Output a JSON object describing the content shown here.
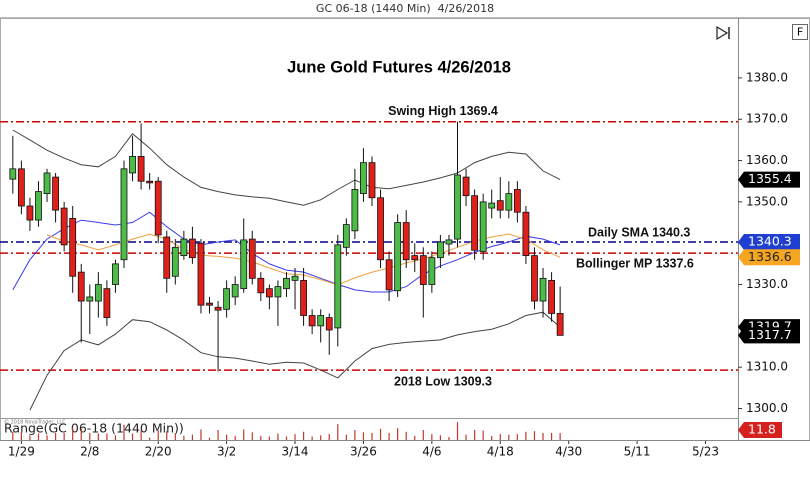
{
  "header": "GC 06-18 (1440 Min)  4/26/2018",
  "toolbar_button": "F",
  "watermark": "© 2018 NinjaTrader, LLC",
  "chart_data": [
    {
      "type": "candlestick",
      "title": "June Gold Futures 4/26/2018",
      "open": [
        1355.5,
        1358,
        1349,
        1345.6,
        1352,
        1356,
        1348.5,
        1346,
        1333,
        1326,
        1326,
        1329,
        1330,
        1336,
        1357,
        1361,
        1355,
        1355,
        1341.5,
        1332,
        1337,
        1341,
        1340,
        1325.5,
        1324.5,
        1324,
        1327,
        1329,
        1341,
        1331.5,
        1329,
        1327,
        1329,
        1331,
        1331,
        1322.5,
        1320,
        1322,
        1319.5,
        1339,
        1343,
        1352,
        1359.5,
        1351,
        1336,
        1328.5,
        1345,
        1337,
        1337,
        1330,
        1336.5,
        1339.8,
        1341,
        1356,
        1351.5,
        1338,
        1348.5,
        1350.3,
        1348,
        1353,
        1347.5,
        1337,
        1326,
        1331,
        1323
      ],
      "high": [
        1366,
        1360,
        1351,
        1355,
        1358,
        1357,
        1350,
        1349,
        1335,
        1330,
        1333,
        1331,
        1336,
        1360,
        1366,
        1369,
        1357,
        1356,
        1343,
        1341,
        1343,
        1344,
        1341,
        1327,
        1326,
        1331,
        1332,
        1346,
        1343,
        1333,
        1330,
        1331,
        1333,
        1334,
        1334,
        1324,
        1324,
        1323,
        1342,
        1346,
        1358,
        1363,
        1361,
        1353,
        1338,
        1347,
        1348,
        1340,
        1339,
        1338,
        1342,
        1342,
        1369.4,
        1358,
        1353,
        1352,
        1353,
        1356,
        1355,
        1355,
        1349,
        1339,
        1334,
        1333,
        1329.5
      ],
      "low": [
        1352,
        1347,
        1343,
        1344,
        1350,
        1345,
        1338,
        1328,
        1316,
        1318,
        1322,
        1320,
        1328,
        1334,
        1355,
        1353,
        1353,
        1340,
        1328,
        1330,
        1336,
        1335,
        1323,
        1323,
        1309,
        1322,
        1325,
        1328,
        1330,
        1326,
        1324,
        1320,
        1327,
        1324,
        1320,
        1318,
        1316,
        1313,
        1315,
        1337,
        1341,
        1350,
        1349,
        1334,
        1326,
        1327,
        1334,
        1333,
        1322,
        1328,
        1334,
        1337,
        1339,
        1349,
        1336,
        1336,
        1346,
        1346,
        1346,
        1345,
        1335,
        1324,
        1322,
        1321,
        1317.7
      ],
      "close": [
        1358,
        1349,
        1345.6,
        1352.5,
        1357,
        1348,
        1339.6,
        1332,
        1326,
        1327,
        1330,
        1322,
        1335,
        1358,
        1361,
        1355,
        1354.6,
        1342,
        1331.5,
        1339,
        1341,
        1336.5,
        1325,
        1325,
        1323.8,
        1329,
        1330,
        1340.8,
        1331.5,
        1328,
        1327,
        1329.5,
        1331.5,
        1332,
        1322.5,
        1320,
        1322.5,
        1319,
        1339.6,
        1344.5,
        1353,
        1359.5,
        1351,
        1336,
        1328.7,
        1345,
        1336,
        1336,
        1330,
        1336.5,
        1340.3,
        1340.8,
        1356.5,
        1351.5,
        1338.3,
        1350,
        1349.7,
        1348,
        1352,
        1347.5,
        1337,
        1326,
        1331.5,
        1323,
        1317.7
      ],
      "up_color": "#4cbb47",
      "down_color": "#e0201b",
      "overlays": [
        {
          "color": "#444444",
          "x": [
            0,
            2,
            4,
            6,
            8,
            10,
            12,
            14,
            16,
            18,
            20,
            22,
            24,
            26,
            28,
            30,
            32,
            34,
            36,
            38,
            40,
            42,
            44,
            46,
            48,
            50,
            52,
            54,
            56,
            58,
            60,
            62,
            64
          ],
          "values": [
            1367.4,
            1365,
            1362.5,
            1360.6,
            1359,
            1358.5,
            1361,
            1366.5,
            1363,
            1359,
            1356,
            1353.5,
            1352.5,
            1351.7,
            1351.2,
            1350.9,
            1350,
            1349.2,
            1350.5,
            1353,
            1355.3,
            1353.5,
            1353.2,
            1354,
            1354.8,
            1355.8,
            1357,
            1359.5,
            1361,
            1362,
            1361.6,
            1357.5,
            1355.4
          ]
        },
        {
          "color": "#444444",
          "x": [
            0,
            2,
            4,
            6,
            8,
            10,
            12,
            14,
            16,
            18,
            20,
            22,
            24,
            26,
            28,
            30,
            32,
            34,
            36,
            38,
            40,
            42,
            44,
            46,
            48,
            50,
            52,
            54,
            56,
            58,
            60,
            62,
            64
          ],
          "values": [
            null,
            1299.6,
            1308,
            1314,
            1316.6,
            1315.4,
            1318,
            1321.5,
            1321,
            1319,
            1316.5,
            1313.5,
            1312.5,
            1312.2,
            1311.5,
            1310.7,
            1311.2,
            1311,
            1309.3,
            1307.4,
            1311.5,
            1314.5,
            1315.5,
            1316,
            1316.3,
            1316.6,
            1317.8,
            1318.6,
            1319.2,
            1320.5,
            1322.5,
            1323.3,
            1319.7
          ]
        },
        {
          "color": "#3b3bea",
          "x": [
            0,
            2,
            4,
            6,
            8,
            10,
            12,
            14,
            16,
            18,
            20,
            22,
            24,
            26,
            28,
            30,
            32,
            34,
            36,
            38,
            40,
            42,
            44,
            46,
            48,
            50,
            52,
            54,
            56,
            58,
            60,
            62,
            64
          ],
          "values": [
            1328.7,
            1336,
            1341,
            1343.5,
            1345.6,
            1345,
            1344.4,
            1345,
            1347.5,
            1344,
            1341,
            1339.6,
            1340.3,
            1340.8,
            1337.5,
            1335,
            1333.5,
            1333,
            1331.5,
            1330,
            1328.7,
            1328.2,
            1328.2,
            1329.5,
            1332.5,
            1334.5,
            1336,
            1337.8,
            1339.2,
            1340.3,
            1341.7,
            1341,
            1339.6
          ]
        },
        {
          "color": "#f0a040",
          "x": [
            0,
            2,
            4,
            6,
            8,
            10,
            12,
            14,
            16,
            18,
            20,
            22,
            24,
            26,
            28,
            30,
            32,
            34,
            36,
            38,
            40,
            42,
            44,
            46,
            48,
            50,
            52,
            54,
            56,
            58,
            60,
            62,
            64
          ],
          "values": [
            null,
            null,
            1342,
            1340.5,
            1339.6,
            1338.4,
            1339.6,
            1341,
            1342.2,
            1341,
            1338.5,
            1337.1,
            1336.8,
            1336.4,
            1335.5,
            1334,
            1332.6,
            1332.3,
            1331.2,
            1329.9,
            1331.6,
            1333,
            1334,
            1335.2,
            1336.2,
            1337.5,
            1339,
            1340.5,
            1341.5,
            1342.2,
            1341,
            1338.4,
            1336.6
          ]
        }
      ],
      "levels": [
        {
          "label": "Swing High 1369.4",
          "value": 1369.4,
          "color": "#cc0000"
        },
        {
          "label": "Daily SMA 1340.3",
          "value": 1340.3,
          "color": "#00008b"
        },
        {
          "label": "Bollinger MP 1337.6",
          "value": 1337.6,
          "color": "#cc0000"
        },
        {
          "label": "2018 Low 1309.3",
          "value": 1309.3,
          "color": "#cc0000"
        }
      ],
      "price_tags": [
        {
          "value": 1355.4,
          "color": "#000000"
        },
        {
          "value": 1340.3,
          "color": "#1f3fd0"
        },
        {
          "value": 1336.6,
          "color": "#f5a623"
        },
        {
          "value": 1319.7,
          "color": "#000000"
        },
        {
          "value": 1317.7,
          "color": "#000000"
        }
      ],
      "xlim": [
        -1.5,
        84.8
      ],
      "xticks": [
        {
          "value": 1,
          "label": "1/29"
        },
        {
          "value": 9,
          "label": "2/8"
        },
        {
          "value": 17,
          "label": "2/20"
        },
        {
          "value": 25,
          "label": "3/2"
        },
        {
          "value": 33,
          "label": "3/14"
        },
        {
          "value": 41,
          "label": "3/26"
        },
        {
          "value": 49,
          "label": "4/6"
        },
        {
          "value": 57,
          "label": "4/18"
        },
        {
          "value": 65,
          "label": "4/30"
        },
        {
          "value": 73,
          "label": "5/11"
        },
        {
          "value": 81,
          "label": "5/23"
        }
      ],
      "ylim": [
        1297.7,
        1394.5
      ],
      "yticks": [
        {
          "value": 1300,
          "label": "1300.0"
        },
        {
          "value": 1310,
          "label": "1310.0"
        },
        {
          "value": 1320,
          "label": "1320.0"
        },
        {
          "value": 1330,
          "label": "1330.0"
        },
        {
          "value": 1340,
          "label": "1340.0"
        },
        {
          "value": 1350,
          "label": "1350.0"
        },
        {
          "value": 1360,
          "label": "1360.0"
        },
        {
          "value": 1370,
          "label": "1370.0"
        },
        {
          "value": 1380,
          "label": "1380.0"
        }
      ]
    },
    {
      "type": "bar",
      "title": "Range(GC 06-18 (1440 Min))",
      "values": [
        14,
        13,
        8,
        11,
        8,
        12,
        12,
        21,
        19,
        12,
        11,
        11,
        8,
        26,
        11,
        16,
        4,
        16,
        15,
        11,
        7,
        9,
        18,
        4,
        17,
        9,
        7,
        18,
        13,
        7,
        6,
        11,
        6,
        10,
        14,
        6,
        8,
        10,
        27,
        9,
        17,
        13,
        12,
        19,
        12,
        20,
        14,
        7,
        17,
        10,
        8,
        5,
        30.4,
        9,
        17,
        16,
        7,
        10,
        9,
        10,
        14,
        15,
        12,
        12,
        11.8
      ],
      "color": "#c0392b",
      "tag_color": "#d62020",
      "ylim": [
        0,
        34
      ]
    }
  ]
}
